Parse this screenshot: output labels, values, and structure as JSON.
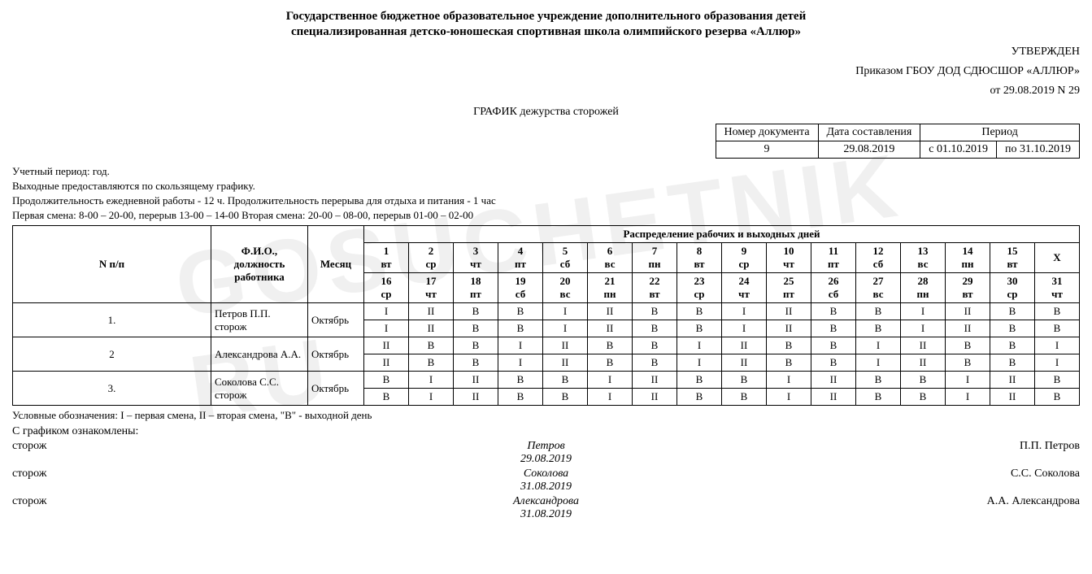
{
  "watermark": "GOSUCHETNIK RU",
  "header": {
    "line1": "Государственное бюджетное образовательное учреждение дополнительного образования детей",
    "line2": "специализированная детско-юношеская спортивная школа олимпийского резерва «Аллюр»"
  },
  "approval": {
    "l1": "УТВЕРЖДЕН",
    "l2": "Приказом ГБОУ ДОД СДЮСШОР «АЛЛЮР»",
    "l3": "от 29.08.2019 N 29"
  },
  "schedule_title": "ГРАФИК дежурства сторожей",
  "meta": {
    "h1": "Номер документа",
    "h2": "Дата составления",
    "h3": "Период",
    "v1": "9",
    "v2": "29.08.2019",
    "v3": "с 01.10.2019",
    "v4": "по 31.10.2019"
  },
  "notes": {
    "n1": "Учетный период: год.",
    "n2": "Выходные предоставляются по скользящему графику.",
    "n3": "Продолжительность ежедневной работы - 12 ч. Продолжительность перерыва для отдыха и питания - 1 час",
    "n4": "Первая смена: 8-00 – 20-00, перерыв 13-00 – 14-00 Вторая смена: 20-00 – 08-00, перерыв 01-00 – 02-00"
  },
  "table": {
    "col_npp": "N п/п",
    "col_fio": "Ф.И.О., должность работника",
    "col_month": "Месяц",
    "col_dist": "Распределение рабочих и выходных дней",
    "days1": [
      {
        "d": "1",
        "w": "вт"
      },
      {
        "d": "2",
        "w": "ср"
      },
      {
        "d": "3",
        "w": "чт"
      },
      {
        "d": "4",
        "w": "пт"
      },
      {
        "d": "5",
        "w": "сб"
      },
      {
        "d": "6",
        "w": "вс"
      },
      {
        "d": "7",
        "w": "пн"
      },
      {
        "d": "8",
        "w": "вт"
      },
      {
        "d": "9",
        "w": "ср"
      },
      {
        "d": "10",
        "w": "чт"
      },
      {
        "d": "11",
        "w": "пт"
      },
      {
        "d": "12",
        "w": "сб"
      },
      {
        "d": "13",
        "w": "вс"
      },
      {
        "d": "14",
        "w": "пн"
      },
      {
        "d": "15",
        "w": "вт"
      },
      {
        "d": "X",
        "w": ""
      }
    ],
    "days2": [
      {
        "d": "16",
        "w": "ср"
      },
      {
        "d": "17",
        "w": "чт"
      },
      {
        "d": "18",
        "w": "пт"
      },
      {
        "d": "19",
        "w": "сб"
      },
      {
        "d": "20",
        "w": "вс"
      },
      {
        "d": "21",
        "w": "пн"
      },
      {
        "d": "22",
        "w": "вт"
      },
      {
        "d": "23",
        "w": "ср"
      },
      {
        "d": "24",
        "w": "чт"
      },
      {
        "d": "25",
        "w": "пт"
      },
      {
        "d": "26",
        "w": "сб"
      },
      {
        "d": "27",
        "w": "вс"
      },
      {
        "d": "28",
        "w": "пн"
      },
      {
        "d": "29",
        "w": "вт"
      },
      {
        "d": "30",
        "w": "ср"
      },
      {
        "d": "31",
        "w": "чт"
      }
    ],
    "rows": [
      {
        "n": "1.",
        "fio": "Петров П.П. сторож",
        "month": "Октябрь",
        "r1": [
          "I",
          "II",
          "В",
          "В",
          "I",
          "II",
          "В",
          "В",
          "I",
          "II",
          "В",
          "В",
          "I",
          "II",
          "В",
          "В"
        ],
        "r2": [
          "I",
          "II",
          "В",
          "В",
          "I",
          "II",
          "В",
          "В",
          "I",
          "II",
          "В",
          "В",
          "I",
          "II",
          "В",
          "В"
        ]
      },
      {
        "n": "2",
        "fio": "Александрова А.А.",
        "month": "Октябрь",
        "r1": [
          "II",
          "В",
          "В",
          "I",
          "II",
          "В",
          "В",
          "I",
          "II",
          "В",
          "В",
          "I",
          "II",
          "В",
          "В",
          "I"
        ],
        "r2": [
          "II",
          "В",
          "В",
          "I",
          "II",
          "В",
          "В",
          "I",
          "II",
          "В",
          "В",
          "I",
          "II",
          "В",
          "В",
          "I"
        ]
      },
      {
        "n": "3.",
        "fio": "Соколова С.С. сторож",
        "month": "Октябрь",
        "r1": [
          "В",
          "I",
          "II",
          "В",
          "В",
          "I",
          "II",
          "В",
          "В",
          "I",
          "II",
          "В",
          "В",
          "I",
          "II",
          "В"
        ],
        "r2": [
          "В",
          "I",
          "II",
          "В",
          "В",
          "I",
          "II",
          "В",
          "В",
          "I",
          "II",
          "В",
          "В",
          "I",
          "II",
          "В"
        ]
      }
    ]
  },
  "legend": "Условные обозначения: I – первая смена, II – вторая смена, \"В\" - выходной день",
  "sign_head": "С графиком ознакомлены:",
  "sigs": [
    {
      "role": "сторож",
      "mid1": "Петров",
      "mid2": "29.08.2019",
      "name": "П.П. Петров"
    },
    {
      "role": "сторож",
      "mid1": "Соколова",
      "mid2": "31.08.2019",
      "name": "С.С. Соколова"
    },
    {
      "role": "сторож",
      "mid1": "Александрова",
      "mid2": "31.08.2019",
      "name": "А.А. Александрова"
    }
  ]
}
